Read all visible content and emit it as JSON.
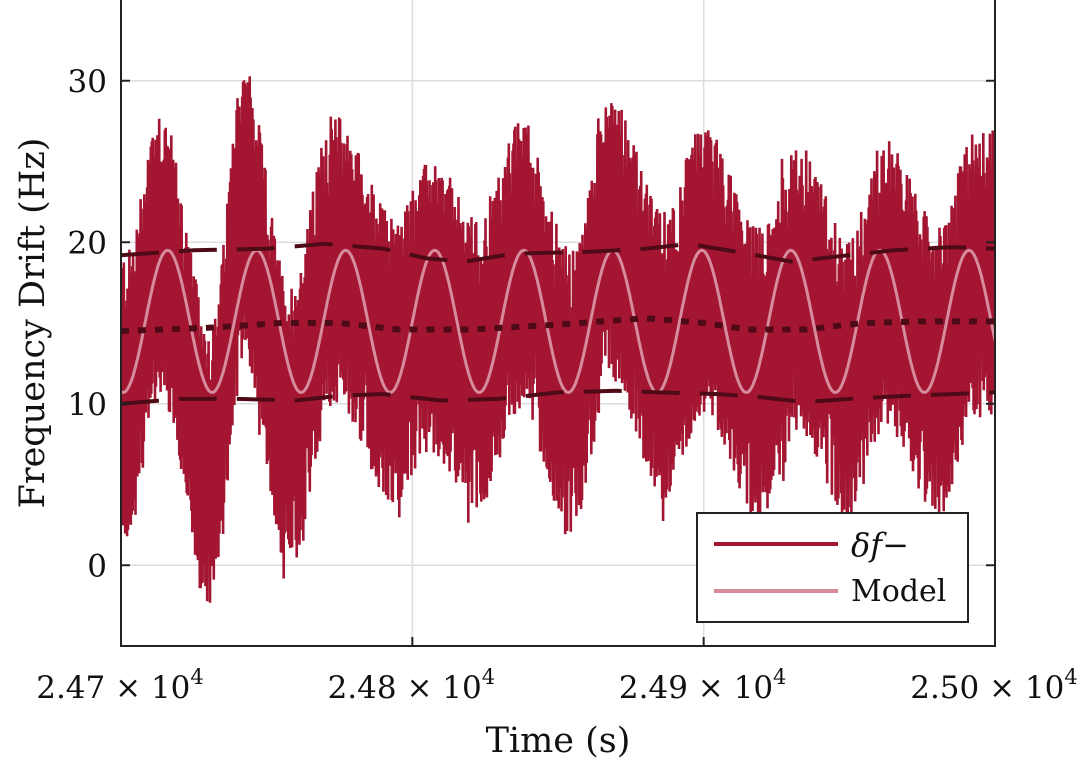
{
  "chart_data": {
    "type": "line",
    "title": "",
    "xlabel": "Time (s)",
    "ylabel": "Frequency Drift (Hz)",
    "xlim": [
      24700,
      25000
    ],
    "ylim": [
      -5,
      35
    ],
    "grid": true,
    "x_ticks": [
      {
        "value": 24700,
        "mantissa": "2.47",
        "exponent": "4"
      },
      {
        "value": 24800,
        "mantissa": "2.48",
        "exponent": "4"
      },
      {
        "value": 24900,
        "mantissa": "2.49",
        "exponent": "4"
      },
      {
        "value": 25000,
        "mantissa": "2.50",
        "exponent": "4"
      }
    ],
    "x_tick_times_symbol": "× 10",
    "y_ticks": [
      {
        "value": 0,
        "label": "0"
      },
      {
        "value": 10,
        "label": "10"
      },
      {
        "value": 20,
        "label": "20"
      },
      {
        "value": 30,
        "label": "30"
      }
    ],
    "legend": {
      "placement": "bottom-right",
      "entries": [
        "δf−",
        "Model"
      ]
    },
    "series": [
      {
        "name": "δf−",
        "color": "#A31531",
        "description_type": "noisy signal envelope extremes",
        "peaks": [
          [
            24713,
            28.5
          ],
          [
            24742,
            30.6
          ],
          [
            24773,
            28.0
          ],
          [
            24806,
            25.0
          ],
          [
            24837,
            27.5
          ],
          [
            24868,
            29.5
          ],
          [
            24900,
            27.3
          ],
          [
            24933,
            26.0
          ],
          [
            24962,
            26.5
          ],
          [
            24993,
            27.0
          ]
        ],
        "troughs": [
          [
            24702,
            1.5
          ],
          [
            24731,
            -3.0
          ],
          [
            24758,
            -0.5
          ],
          [
            24794,
            3.7
          ],
          [
            24823,
            3.5
          ],
          [
            24855,
            1.5
          ],
          [
            24886,
            4.0
          ],
          [
            24919,
            3.0
          ],
          [
            24950,
            2.5
          ],
          [
            24981,
            3.0
          ]
        ]
      },
      {
        "name": "Model",
        "color": "#D68C9C",
        "offset": 15.1,
        "amplitude": 4.4,
        "period_s": 30.56,
        "first_peak_s": 24716
      },
      {
        "name": "upper envelope",
        "color": "#4E0A17",
        "style": "dashed",
        "points": [
          [
            24700,
            19.2
          ],
          [
            24725,
            19.5
          ],
          [
            24750,
            19.6
          ],
          [
            24770,
            19.9
          ],
          [
            24790,
            19.6
          ],
          [
            24805,
            19.0
          ],
          [
            24818,
            18.8
          ],
          [
            24835,
            19.3
          ],
          [
            24860,
            19.4
          ],
          [
            24880,
            19.6
          ],
          [
            24895,
            19.9
          ],
          [
            24915,
            19.3
          ],
          [
            24930,
            18.8
          ],
          [
            24945,
            19.1
          ],
          [
            24965,
            19.5
          ],
          [
            24985,
            19.7
          ],
          [
            25000,
            19.6
          ]
        ]
      },
      {
        "name": "lower envelope",
        "color": "#4E0A17",
        "style": "dashed",
        "points": [
          [
            24700,
            10.0
          ],
          [
            24720,
            10.3
          ],
          [
            24740,
            10.3
          ],
          [
            24760,
            10.2
          ],
          [
            24775,
            10.5
          ],
          [
            24790,
            10.6
          ],
          [
            24810,
            10.2
          ],
          [
            24830,
            10.3
          ],
          [
            24850,
            10.7
          ],
          [
            24870,
            10.8
          ],
          [
            24885,
            10.7
          ],
          [
            24905,
            10.6
          ],
          [
            24920,
            10.4
          ],
          [
            24935,
            10.1
          ],
          [
            24950,
            10.3
          ],
          [
            24970,
            10.5
          ],
          [
            24985,
            10.6
          ],
          [
            25000,
            10.7
          ]
        ]
      },
      {
        "name": "mean",
        "color": "#4E0A17",
        "style": "dotted",
        "points": [
          [
            24700,
            14.5
          ],
          [
            24730,
            14.7
          ],
          [
            24755,
            15.0
          ],
          [
            24775,
            15.0
          ],
          [
            24795,
            14.6
          ],
          [
            24820,
            14.6
          ],
          [
            24850,
            14.9
          ],
          [
            24880,
            15.3
          ],
          [
            24900,
            15.0
          ],
          [
            24915,
            14.6
          ],
          [
            24935,
            14.6
          ],
          [
            24955,
            15.0
          ],
          [
            24975,
            15.1
          ],
          [
            25000,
            15.1
          ]
        ]
      }
    ]
  }
}
